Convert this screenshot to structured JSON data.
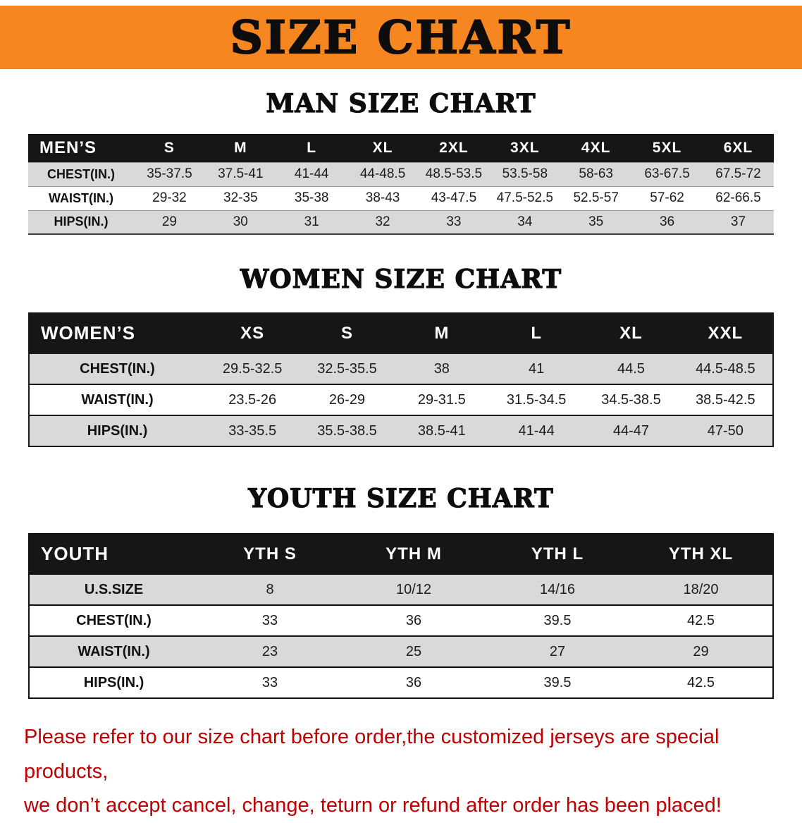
{
  "banner": {
    "title": "SIZE CHART",
    "bg_color": "#f6861f",
    "text_color": "#0d0d0d"
  },
  "colors": {
    "table_header_bg": "#161616",
    "table_row_alt_bg": "#d9d9d9",
    "note_red": "#c00000"
  },
  "sections": [
    {
      "heading": "MAN SIZE CHART",
      "table": {
        "header": [
          "MEN’S",
          "S",
          "M",
          "L",
          "XL",
          "2XL",
          "3XL",
          "4XL",
          "5XL",
          "6XL"
        ],
        "rows": [
          {
            "label": "CHEST(IN.)",
            "values": [
              "35-37.5",
              "37.5-41",
              "41-44",
              "44-48.5",
              "48.5-53.5",
              "53.5-58",
              "58-63",
              "63-67.5",
              "67.5-72"
            ]
          },
          {
            "label": "WAIST(IN.)",
            "values": [
              "29-32",
              "32-35",
              "35-38",
              "38-43",
              "43-47.5",
              "47.5-52.5",
              "52.5-57",
              "57-62",
              "62-66.5"
            ]
          },
          {
            "label": "HIPS(IN.)",
            "values": [
              "29",
              "30",
              "31",
              "32",
              "33",
              "34",
              "35",
              "36",
              "37"
            ]
          }
        ]
      }
    },
    {
      "heading": "WOMEN SIZE CHART",
      "table": {
        "header": [
          "WOMEN’S",
          "XS",
          "S",
          "M",
          "L",
          "XL",
          "XXL"
        ],
        "rows": [
          {
            "label": "CHEST(IN.)",
            "values": [
              "29.5-32.5",
              "32.5-35.5",
              "38",
              "41",
              "44.5",
              "44.5-48.5"
            ]
          },
          {
            "label": "WAIST(IN.)",
            "values": [
              "23.5-26",
              "26-29",
              "29-31.5",
              "31.5-34.5",
              "34.5-38.5",
              "38.5-42.5"
            ]
          },
          {
            "label": "HIPS(IN.)",
            "values": [
              "33-35.5",
              "35.5-38.5",
              "38.5-41",
              "41-44",
              "44-47",
              "47-50"
            ]
          }
        ]
      }
    },
    {
      "heading": "YOUTH SIZE CHART",
      "table": {
        "header": [
          "YOUTH",
          "YTH S",
          "YTH M",
          "YTH L",
          "YTH XL"
        ],
        "rows": [
          {
            "label": "U.S.SIZE",
            "values": [
              "8",
              "10/12",
              "14/16",
              "18/20"
            ]
          },
          {
            "label": "CHEST(IN.)",
            "values": [
              "33",
              "36",
              "39.5",
              "42.5"
            ]
          },
          {
            "label": "WAIST(IN.)",
            "values": [
              "23",
              "25",
              "27",
              "29"
            ]
          },
          {
            "label": "HIPS(IN.)",
            "values": [
              "33",
              "36",
              "39.5",
              "42.5"
            ]
          }
        ]
      }
    }
  ],
  "footnote": {
    "line1": "Please refer to our size chart before order,the customized jerseys are special products,",
    "line2": "we don’t accept cancel, change, teturn or refund after order has been placed!"
  }
}
